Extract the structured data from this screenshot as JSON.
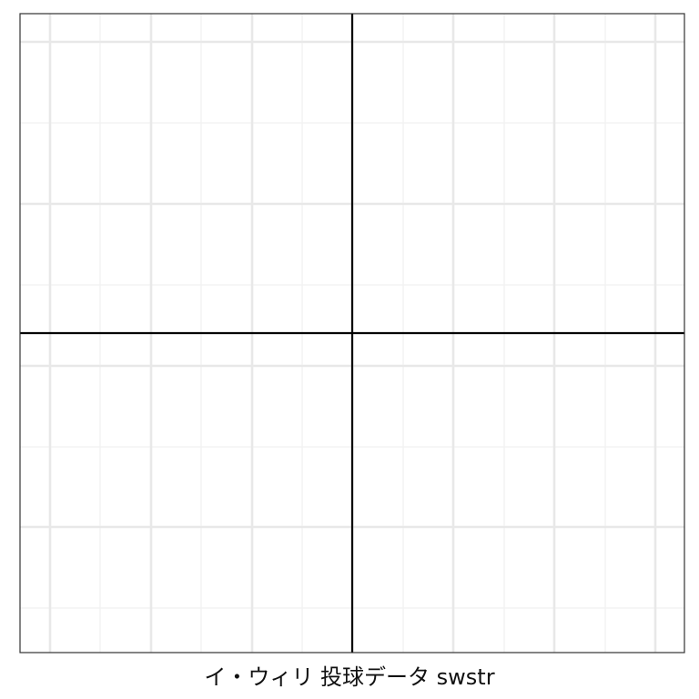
{
  "chart_data": {
    "type": "scatter",
    "title": "",
    "xlabel": "イ・ウィリ 投球データ swstr",
    "ylabel": "",
    "series": [],
    "grid": true,
    "legend": "none",
    "colors": {
      "background": "#ffffff",
      "grid_major": "#e8e8e8",
      "grid_minor": "#f1f1f1",
      "panel_border": "#333333",
      "zero_lines": "#000000"
    }
  }
}
